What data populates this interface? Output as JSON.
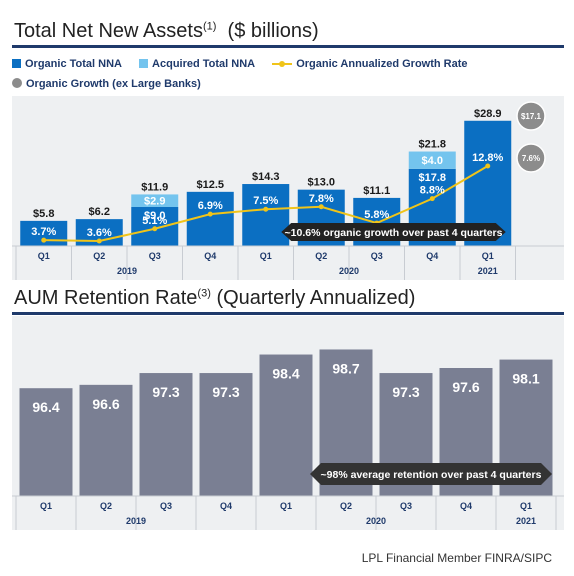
{
  "chart1": {
    "title": "Total Net New Assets",
    "title_sup": "(1)",
    "title_unit": "($ billions)",
    "legend": {
      "organic": "Organic Total NNA",
      "acquired": "Acquired Total NNA",
      "rate": "Organic Annualized Growth Rate",
      "ex_banks": "Organic Growth (ex Large Banks)"
    },
    "colors": {
      "organic": "#0b6fc2",
      "acquired": "#74c4ee",
      "rate": "#f0c419",
      "ex_banks": "#8c8c8c"
    },
    "callout": "~10.6% organic growth over past 4 quarters"
  },
  "chart2": {
    "title": "AUM Retention Rate",
    "title_sup": "(3)",
    "title_unit": "(Quarterly Annualized)",
    "colors": {
      "bar": "#7a7f93"
    },
    "callout": "~98% average retention over past 4 quarters"
  },
  "chart_data": [
    {
      "type": "bar",
      "categories": [
        "Q1",
        "Q2",
        "Q3",
        "Q4",
        "Q1",
        "Q2",
        "Q3",
        "Q4",
        "Q1"
      ],
      "years": [
        {
          "label": "2019",
          "span": [
            0,
            3
          ]
        },
        {
          "label": "2020",
          "span": [
            4,
            7
          ]
        },
        {
          "label": "2021",
          "span": [
            8,
            8
          ]
        }
      ],
      "series": [
        {
          "name": "Organic Total NNA",
          "values": [
            5.8,
            6.2,
            9.0,
            12.5,
            14.3,
            13.0,
            11.1,
            17.8,
            28.9
          ]
        },
        {
          "name": "Acquired Total NNA",
          "values": [
            0,
            0,
            2.9,
            0,
            0,
            0,
            0,
            4.0,
            0
          ]
        },
        {
          "name": "Organic Annualized Growth Rate",
          "values": [
            3.7,
            3.6,
            5.1,
            6.9,
            7.5,
            7.8,
            5.8,
            8.8,
            12.8
          ]
        }
      ],
      "bar_labels": [
        "$5.8",
        "$6.2",
        "$9.0",
        "$12.5",
        "$14.3",
        "$13.0",
        "$11.1",
        "$17.8",
        "$28.9"
      ],
      "acquired_labels": [
        "",
        "",
        "$2.9",
        "",
        "",
        "",
        "",
        "$4.0",
        ""
      ],
      "total_labels": [
        "",
        "",
        "$11.9",
        "",
        "",
        "",
        "",
        "$21.8",
        ""
      ],
      "rate_labels": [
        "3.7%",
        "3.6%",
        "5.1%",
        "6.9%",
        "7.5%",
        "7.8%",
        "5.8%",
        "8.8%",
        "12.8%"
      ],
      "ex_large_banks": {
        "name": "Organic Growth (ex Large Banks)",
        "values": [
          17.1,
          7.6
        ],
        "labels": [
          "$17.1",
          "7.6%"
        ]
      },
      "ylim": [
        0,
        30
      ]
    },
    {
      "type": "bar",
      "categories": [
        "Q1",
        "Q2",
        "Q3",
        "Q4",
        "Q1",
        "Q2",
        "Q3",
        "Q4",
        "Q1"
      ],
      "years": [
        {
          "label": "2019",
          "span": [
            0,
            3
          ]
        },
        {
          "label": "2020",
          "span": [
            4,
            7
          ]
        },
        {
          "label": "2021",
          "span": [
            8,
            8
          ]
        }
      ],
      "values": [
        96.4,
        96.6,
        97.3,
        97.3,
        98.4,
        98.7,
        97.3,
        97.6,
        98.1
      ],
      "labels": [
        "96.4",
        "96.6",
        "97.3",
        "97.3",
        "98.4",
        "98.7",
        "97.3",
        "97.6",
        "98.1"
      ],
      "ylim": [
        90,
        99.5
      ]
    }
  ],
  "footer": "LPL Financial   Member FINRA/SIPC"
}
